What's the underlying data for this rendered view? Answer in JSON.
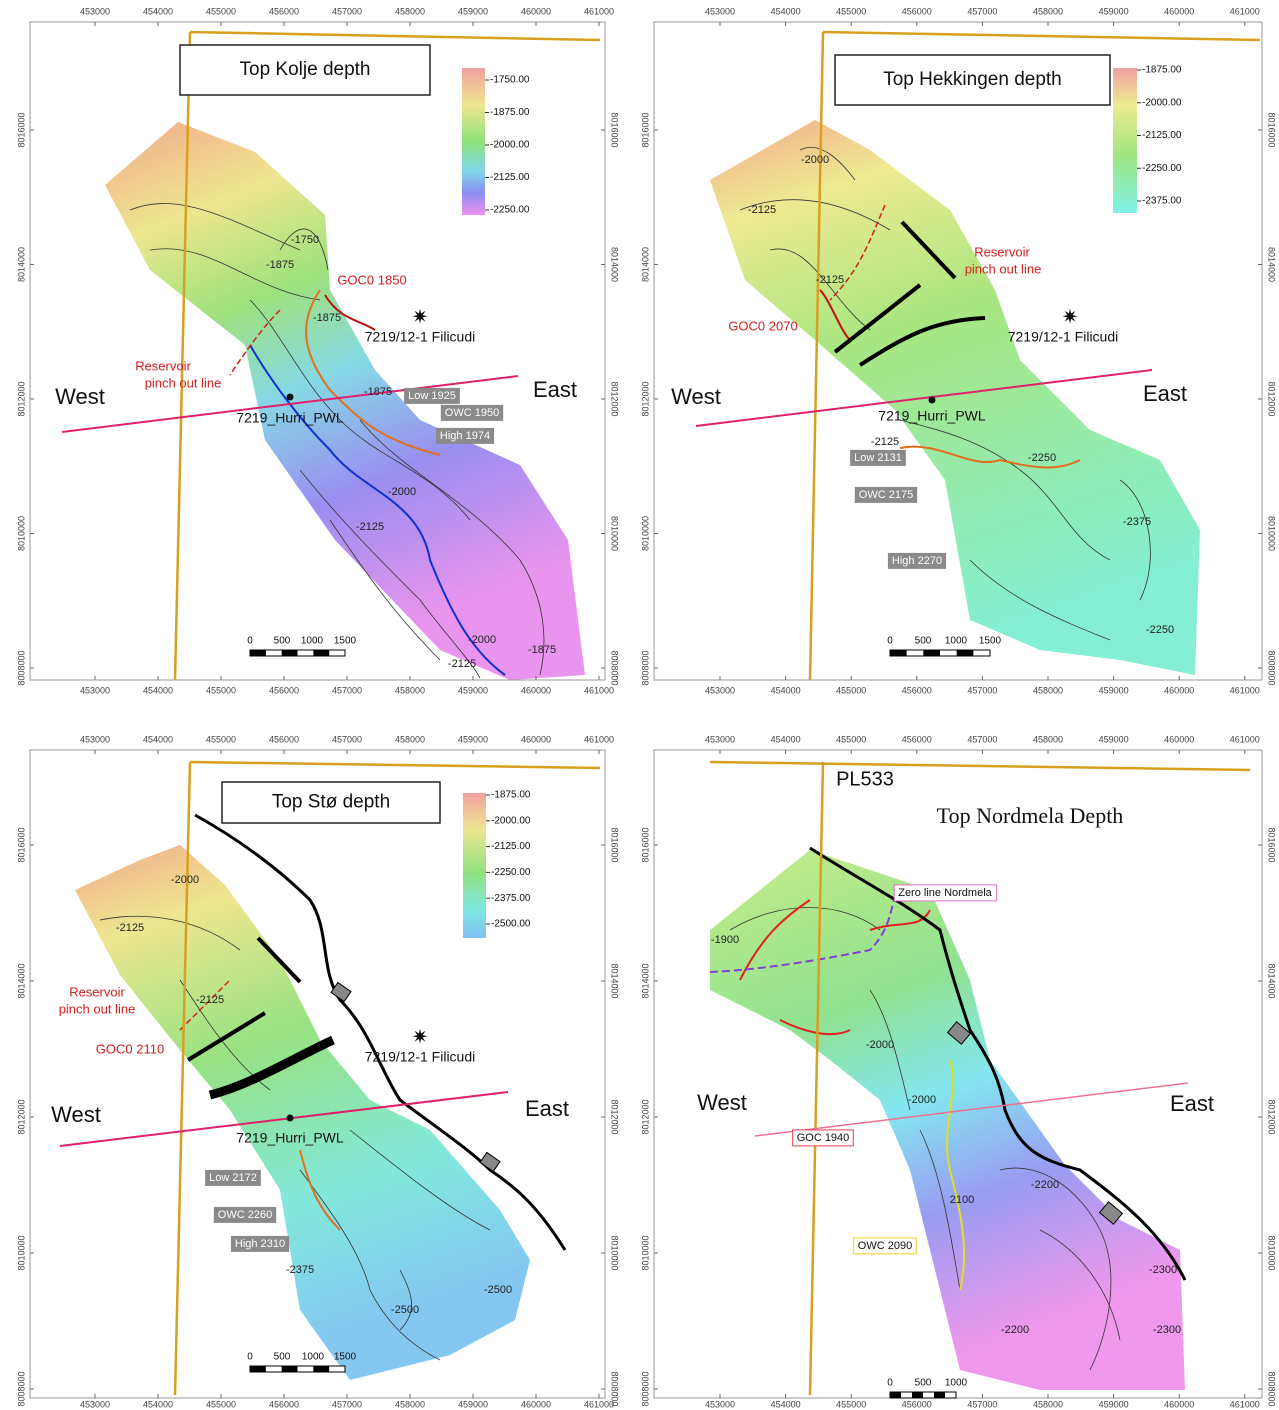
{
  "panels": [
    {
      "title": "Top Kolje depth",
      "x_ticks": [
        453000,
        454000,
        455000,
        456000,
        457000,
        458000,
        459000,
        460000,
        461000
      ],
      "y_ticks": [
        8008000,
        8010000,
        8012000,
        8014000,
        8016000
      ],
      "colorbar": [
        "-1750.00",
        "-1875.00",
        "-2000.00",
        "-2125.00",
        "-2250.00"
      ],
      "labels": [
        "GOC0 1850",
        "7219/12-1 Filicudi",
        "Reservoir",
        "pinch out line",
        "West",
        "East",
        "7219_Hurri_PWL",
        "Low 1925",
        "OWC 1950",
        "High 1974",
        "-1750",
        "-1875",
        "-1875",
        "-1875",
        "-2000",
        "-2125",
        "-2000",
        "-2125",
        "-1875"
      ],
      "scale_bar": [
        "0",
        "500",
        "1000",
        "1500"
      ]
    },
    {
      "title": "Top Hekkingen depth",
      "x_ticks": [
        453000,
        454000,
        455000,
        456000,
        457000,
        458000,
        459000,
        460000,
        461000
      ],
      "y_ticks": [
        8008000,
        8010000,
        8012000,
        8014000,
        8016000
      ],
      "colorbar": [
        "-1875.00",
        "-2000.00",
        "-2125.00",
        "-2250.00",
        "-2375.00"
      ],
      "labels": [
        "Reservoir",
        "pinch out line",
        "GOC0 2070",
        "7219/12-1 Filicudi",
        "West",
        "East",
        "7219_Hurri_PWL",
        "Low 2131",
        "OWC 2175",
        "High 2270",
        "-2000",
        "-2125",
        "-2125",
        "-2125",
        "-2250",
        "-2375",
        "-2250"
      ],
      "scale_bar": [
        "0",
        "500",
        "1000",
        "1500"
      ]
    },
    {
      "title": "Top Stø depth",
      "x_ticks": [
        453000,
        454000,
        455000,
        456000,
        457000,
        458000,
        459000,
        460000,
        461000
      ],
      "y_ticks": [
        8008000,
        8010000,
        8012000,
        8014000,
        8016000
      ],
      "colorbar": [
        "-1875.00",
        "-2000.00",
        "-2125.00",
        "-2250.00",
        "-2375.00",
        "-2500.00"
      ],
      "labels": [
        "Reservoir",
        "pinch out line",
        "GOC0 2110",
        "7219/12-1 Filicudi",
        "West",
        "East",
        "7219_Hurri_PWL",
        "Low 2172",
        "OWC 2260",
        "High 2310",
        "-2000",
        "-2125",
        "-2125",
        "-2375",
        "-2500",
        "-2500"
      ],
      "scale_bar": [
        "0",
        "500",
        "1000",
        "1500"
      ]
    },
    {
      "title": "Top Nordmela Depth",
      "x_ticks": [
        453000,
        454000,
        455000,
        456000,
        457000,
        458000,
        459000,
        460000,
        461000
      ],
      "y_ticks": [
        8008000,
        8010000,
        8012000,
        8014000,
        8016000
      ],
      "labels": [
        "PL533",
        "Zero line Nordmela",
        "West",
        "East",
        "GOC 1940",
        "OWC 2090",
        "-1900",
        "-2000",
        "-2000",
        "2100",
        "-2200",
        "-2300",
        "-2300",
        "-2200"
      ],
      "scale_bar": [
        "0",
        "500",
        "1000"
      ]
    }
  ]
}
